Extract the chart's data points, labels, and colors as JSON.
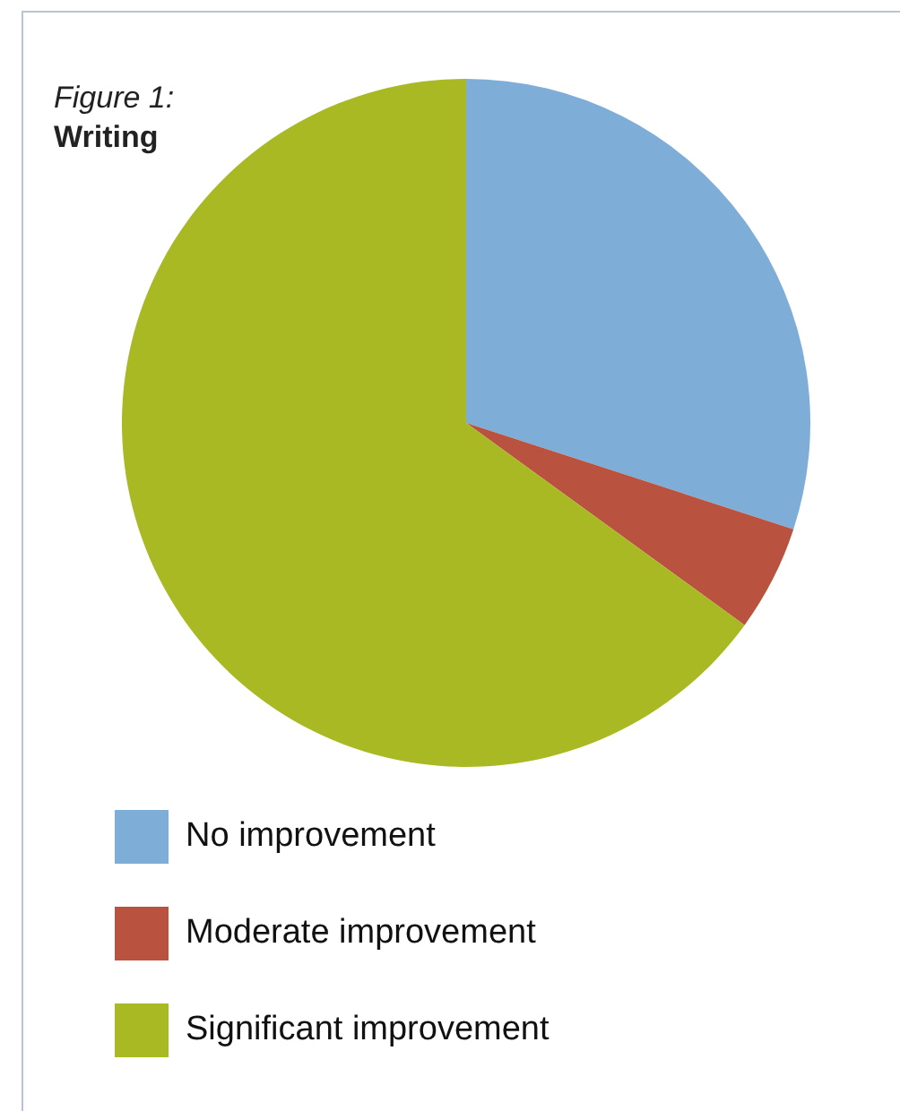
{
  "chart_data": {
    "type": "pie",
    "title": "Figure 1:",
    "subtitle": "Writing",
    "categories": [
      "No improvement",
      "Moderate improvement",
      "Significant improvement"
    ],
    "values": [
      30,
      5,
      65
    ],
    "colors": [
      "#7eaed8",
      "#b9533f",
      "#a9b923"
    ],
    "legend": "bottom"
  }
}
